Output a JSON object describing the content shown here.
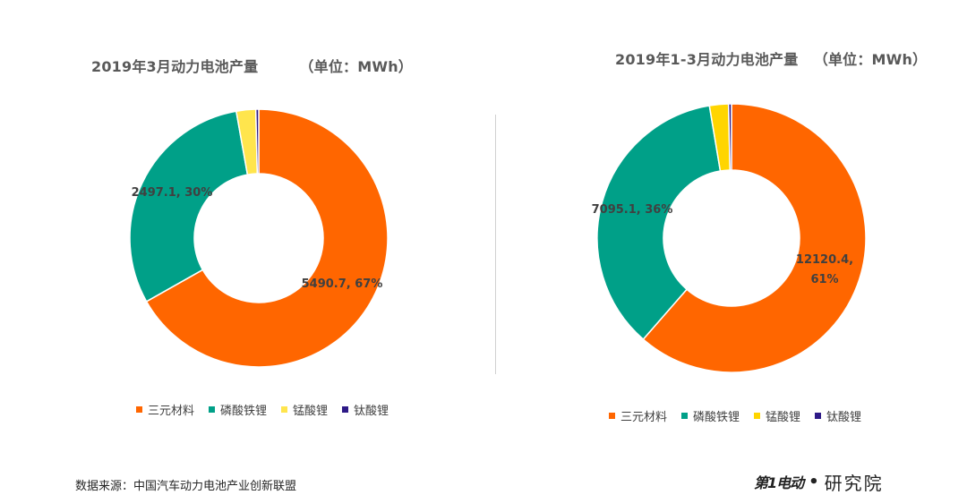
{
  "chart_data": [
    {
      "type": "pie",
      "title": "2019年3月动力电池产量        （单位：MWh）",
      "categories": [
        "三元材料",
        "磷酸铁锂",
        "锰酸锂",
        "钛酸锂"
      ],
      "values": [
        5490.7,
        2497.1,
        200,
        30
      ],
      "percent_labels": [
        "5490.7, 67%",
        "2497.1, 30%",
        "",
        ""
      ],
      "colors": [
        "#FF6600",
        "#00A088",
        "#FFE54D",
        "#2E1A87"
      ],
      "legend_position": "bottom"
    },
    {
      "type": "pie",
      "title": "2019年1-3月动力电池产量   （单位：MWh）",
      "categories": [
        "三元材料",
        "磷酸铁锂",
        "锰酸锂",
        "钛酸锂"
      ],
      "values": [
        12120.4,
        7095.1,
        450,
        70
      ],
      "percent_labels": [
        "12120.4,\n61%",
        "7095.1, 36%",
        "",
        ""
      ],
      "colors": [
        "#FF6600",
        "#00A088",
        "#FFD500",
        "#2E1A87"
      ],
      "legend_position": "bottom"
    }
  ],
  "legend": {
    "left": [
      "三元材料",
      "磷酸铁锂",
      "锰酸锂",
      "钛酸锂"
    ],
    "right": [
      "三元材料",
      "磷酸铁锂",
      "锰酸锂",
      "钛酸锂"
    ]
  },
  "footer": {
    "source": "数据来源：中国汽车动力电池产业创新联盟",
    "logo_mark": "第1电动",
    "logo_dot": "•",
    "logo_text": "研究院"
  }
}
